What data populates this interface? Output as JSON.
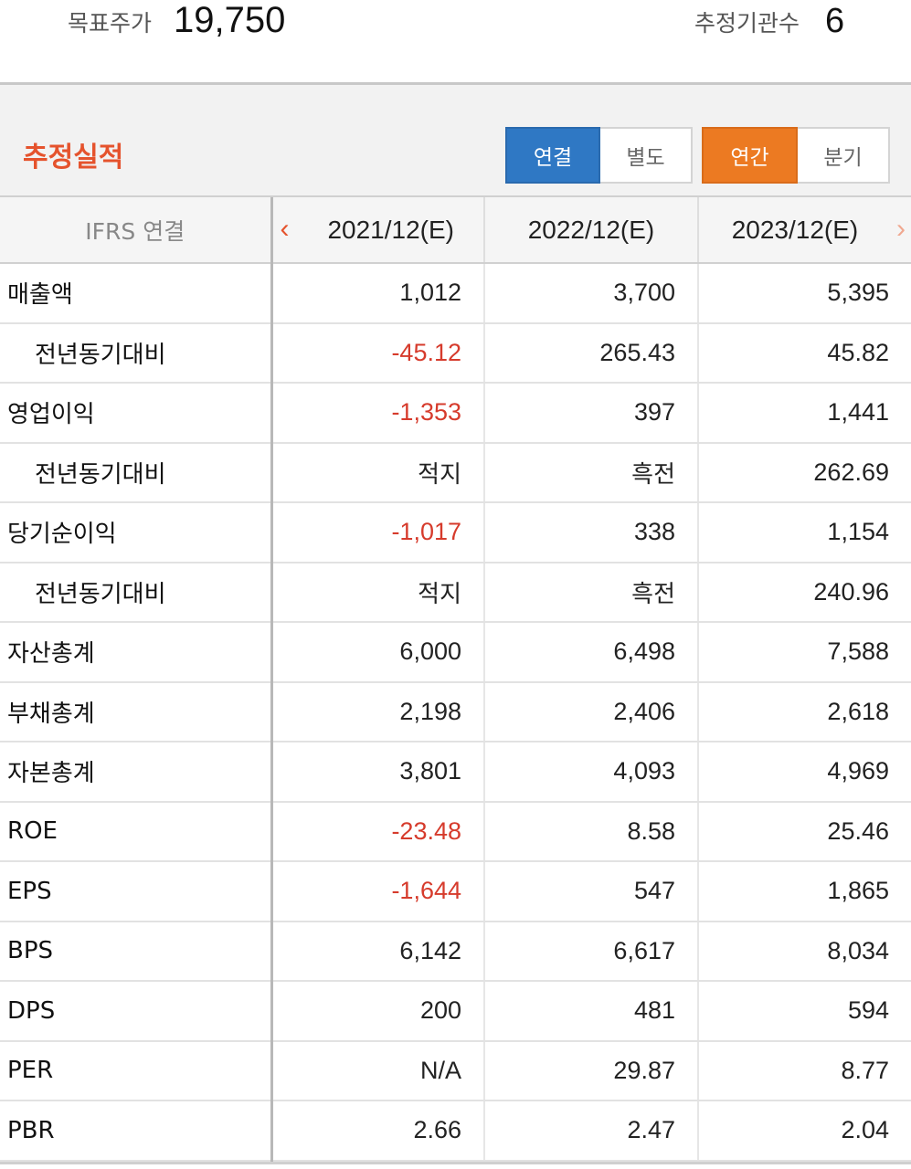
{
  "target_price": {
    "label": "목표주가",
    "value": "19,750"
  },
  "institution_count": {
    "label": "추정기관수",
    "value": "6"
  },
  "section": {
    "title": "추정실적",
    "basis_buttons": [
      "연결",
      "별도"
    ],
    "period_buttons": [
      "연간",
      "분기"
    ]
  },
  "table": {
    "header_label": "IFRS 연결",
    "periods": [
      "2021/12(E)",
      "2022/12(E)",
      "2023/12(E)"
    ],
    "rows": [
      {
        "label": "매출액",
        "values": [
          "1,012",
          "3,700",
          "5,395"
        ]
      },
      {
        "label": "전년동기대비",
        "values": [
          "-45.12",
          "265.43",
          "45.82"
        ]
      },
      {
        "label": "영업이익",
        "values": [
          "-1,353",
          "397",
          "1,441"
        ]
      },
      {
        "label": "전년동기대비",
        "values": [
          "적지",
          "흑전",
          "262.69"
        ]
      },
      {
        "label": "당기순이익",
        "values": [
          "-1,017",
          "338",
          "1,154"
        ]
      },
      {
        "label": "전년동기대비",
        "values": [
          "적지",
          "흑전",
          "240.96"
        ]
      },
      {
        "label": "자산총계",
        "values": [
          "6,000",
          "6,498",
          "7,588"
        ]
      },
      {
        "label": "부채총계",
        "values": [
          "2,198",
          "2,406",
          "2,618"
        ]
      },
      {
        "label": "자본총계",
        "values": [
          "3,801",
          "4,093",
          "4,969"
        ]
      },
      {
        "label": "ROE",
        "values": [
          "-23.48",
          "8.58",
          "25.46"
        ]
      },
      {
        "label": "EPS",
        "values": [
          "-1,644",
          "547",
          "1,865"
        ]
      },
      {
        "label": "BPS",
        "values": [
          "6,142",
          "6,617",
          "8,034"
        ]
      },
      {
        "label": "DPS",
        "values": [
          "200",
          "481",
          "594"
        ]
      },
      {
        "label": "PER",
        "values": [
          "N/A",
          "29.87",
          "8.77"
        ]
      },
      {
        "label": "PBR",
        "values": [
          "2.66",
          "2.47",
          "2.04"
        ]
      }
    ]
  },
  "colors": {
    "accent_red": "#e5532d",
    "negative": "#d63b2c",
    "active_blue": "#2f78c4",
    "active_orange": "#ec7a22"
  },
  "icons": {
    "prev": "chevron-left-icon",
    "next": "chevron-right-icon"
  }
}
